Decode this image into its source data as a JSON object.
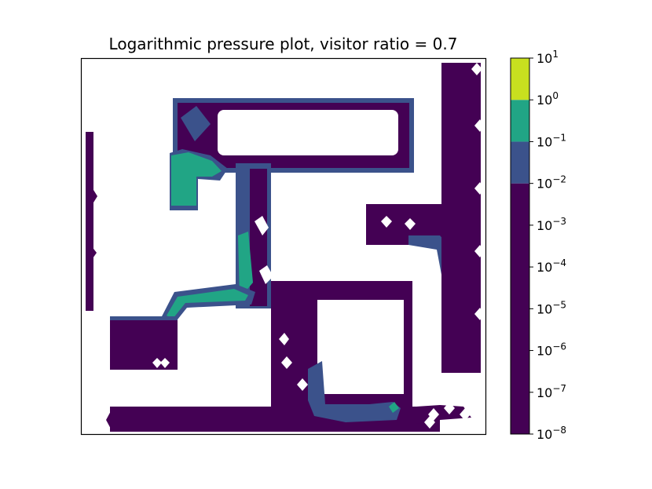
{
  "chart_data": {
    "type": "heatmap",
    "title": "Logarithmic pressure plot, visitor ratio = 0.7",
    "xlabel": "",
    "ylabel": "",
    "x_ticks": [],
    "y_ticks": [],
    "colorbar": {
      "scale": "log",
      "range": [
        1e-08,
        10
      ],
      "levels": [
        1e-08,
        1e-07,
        1e-06,
        1e-05,
        0.0001,
        0.001,
        0.01,
        0.1,
        1,
        10
      ],
      "tick_labels": [
        {
          "base": "10",
          "exp": "1",
          "value": 10
        },
        {
          "base": "10",
          "exp": "0",
          "value": 1
        },
        {
          "base": "10",
          "exp": "−1",
          "value": 0.1
        },
        {
          "base": "10",
          "exp": "−2",
          "value": 0.01
        },
        {
          "base": "10",
          "exp": "−3",
          "value": 0.001
        },
        {
          "base": "10",
          "exp": "−4",
          "value": 0.0001
        },
        {
          "base": "10",
          "exp": "−5",
          "value": 1e-05
        },
        {
          "base": "10",
          "exp": "−6",
          "value": 1e-06
        },
        {
          "base": "10",
          "exp": "−7",
          "value": 1e-07
        },
        {
          "base": "10",
          "exp": "−8",
          "value": 1e-08
        }
      ],
      "bands": [
        {
          "from": 1e-08,
          "to": 0.01,
          "color": "#440154"
        },
        {
          "from": 0.01,
          "to": 0.1,
          "color": "#3b528b"
        },
        {
          "from": 0.1,
          "to": 1,
          "color": "#21a585"
        },
        {
          "from": 1,
          "to": 10,
          "color": "#c8e01f"
        }
      ]
    },
    "grid": false
  }
}
